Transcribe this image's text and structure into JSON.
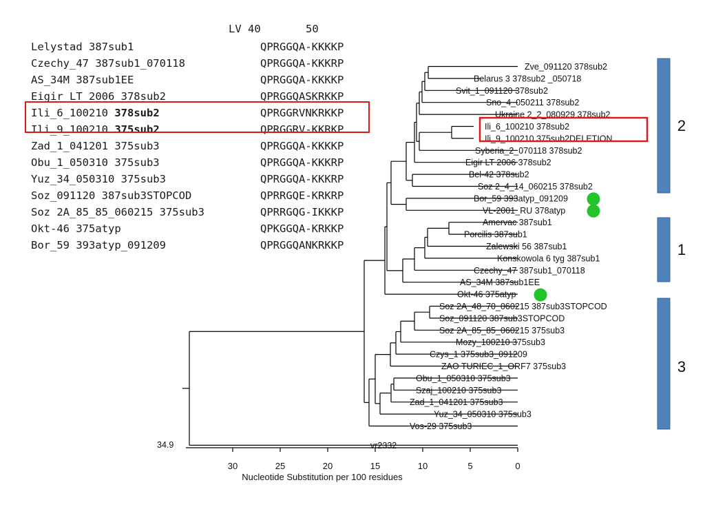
{
  "alignment": {
    "header": "LV 40       50",
    "rows": [
      {
        "name": "Lelystad 387sub1",
        "bold": "",
        "seq": "QPRGGQA-KKKKP"
      },
      {
        "name": "Czechy_47 387sub1_070118",
        "bold": "",
        "seq": "QPRGGQA-KKKRP"
      },
      {
        "name": "AS_34M 387sub1EE",
        "bold": "",
        "seq": "QPRGGQA-KKKKP"
      },
      {
        "name": "Eigir LT 2006 378sub2",
        "bold": "",
        "seq": "QPRGGQASKRKKP"
      },
      {
        "name": "Ili_6_100210 ",
        "bold": "378sub2",
        "seq": "QPRGGRVNKRKKP"
      },
      {
        "name": "Ili_9_100210 ",
        "bold": "375sub2",
        "seq": "QPRGGRV-KKRKP"
      },
      {
        "name": "Zad_1_041201 375sub3",
        "bold": "",
        "seq": "QPRGGQA-KKKKP"
      },
      {
        "name": "Obu_1_050310 375sub3",
        "bold": "",
        "seq": "QPRGGQA-KKKRP"
      },
      {
        "name": "Yuz_34_050310 375sub3",
        "bold": "",
        "seq": "QPRGGQA-KKKRP"
      },
      {
        "name": "Soz_091120 387sub3STOPCOD",
        "bold": "",
        "seq": "QPRRGQE-KRKRP"
      },
      {
        "name": "Soz 2A_85_85_060215 375sub3",
        "bold": "",
        "seq": "QPRRGQG-IKKKP"
      },
      {
        "name": "Okt-46 375atyp",
        "bold": "",
        "seq": "QPKGGQA-KRKKP"
      },
      {
        "name": "Bor_59 393atyp_091209",
        "bold": "",
        "seq": "QPRGGQANKRKKP"
      }
    ]
  },
  "tree": {
    "leaves": [
      {
        "label": "Zve_091120 378sub2",
        "marker": false
      },
      {
        "label": "Belarus 3 378sub2 _050718",
        "marker": false
      },
      {
        "label": "Svit_1_091120 378sub2",
        "marker": false
      },
      {
        "label": "Sno_4_050211 378sub2",
        "marker": false
      },
      {
        "label": "Ukraine 2_2_080929 378sub2",
        "marker": false
      },
      {
        "label": "Ili_6_100210 378sub2",
        "marker": false
      },
      {
        "label": "Ili_9_100210 375sub2DELETION",
        "marker": false
      },
      {
        "label": "Syberia_2_070118 378sub2",
        "marker": false
      },
      {
        "label": "Eigir LT 2006 378sub2",
        "marker": false
      },
      {
        "label": "Bel-42 378sub2",
        "marker": false
      },
      {
        "label": "Soz 2_4_14_060215 378sub2",
        "marker": false
      },
      {
        "label": "Bor_59 393atyp_091209",
        "marker": true
      },
      {
        "label": "VL-2001_RU 378atyp",
        "marker": true
      },
      {
        "label": "Amervac 387sub1",
        "marker": false
      },
      {
        "label": "Porcilis 387sub1",
        "marker": false
      },
      {
        "label": "Zalewski 56 387sub1",
        "marker": false
      },
      {
        "label": "Konskowola 6 tyg 387sub1",
        "marker": false
      },
      {
        "label": "Czechy_47 387sub1_070118",
        "marker": false
      },
      {
        "label": "AS_34M 387sub1EE",
        "marker": false
      },
      {
        "label": "Okt-46 375atyp",
        "marker": true
      },
      {
        "label": "Soz 2A_48_70_060215 387sub3STOPCOD",
        "marker": false
      },
      {
        "label": "Soz_091120 387sub3STOPCOD",
        "marker": false
      },
      {
        "label": "Soz 2A_85_85_060215 375sub3",
        "marker": false
      },
      {
        "label": "Mozy_100210 375sub3",
        "marker": false
      },
      {
        "label": "Czys_1 375sub3_091209",
        "marker": false
      },
      {
        "label": "ZAO TURIEC_1_ORF7 375sub3",
        "marker": false
      },
      {
        "label": "Obu_1_050310 375sub3",
        "marker": false
      },
      {
        "label": "Szaj_100210 375sub3",
        "marker": false
      },
      {
        "label": "Zad_1_041201 375sub3",
        "marker": false
      },
      {
        "label": "Yuz_34_050310 375sub3",
        "marker": false
      },
      {
        "label": "Vos-29 375sub3",
        "marker": false
      },
      {
        "label": "vr2332",
        "marker": false
      }
    ],
    "root_value": "34.9",
    "axis": {
      "ticks": [
        30,
        25,
        20,
        15,
        10,
        5,
        0
      ],
      "label": "Nucleotide Substitution per 100 residues",
      "min": 0,
      "max": 34.9
    }
  },
  "groups": [
    {
      "label": "2"
    },
    {
      "label": "1"
    },
    {
      "label": "3"
    }
  ],
  "colors": {
    "highlight": "#e01818",
    "marker": "#22c42a",
    "group_bar": "#4f81bd",
    "group_bar_border": "#3a6595",
    "line": "#000000"
  }
}
